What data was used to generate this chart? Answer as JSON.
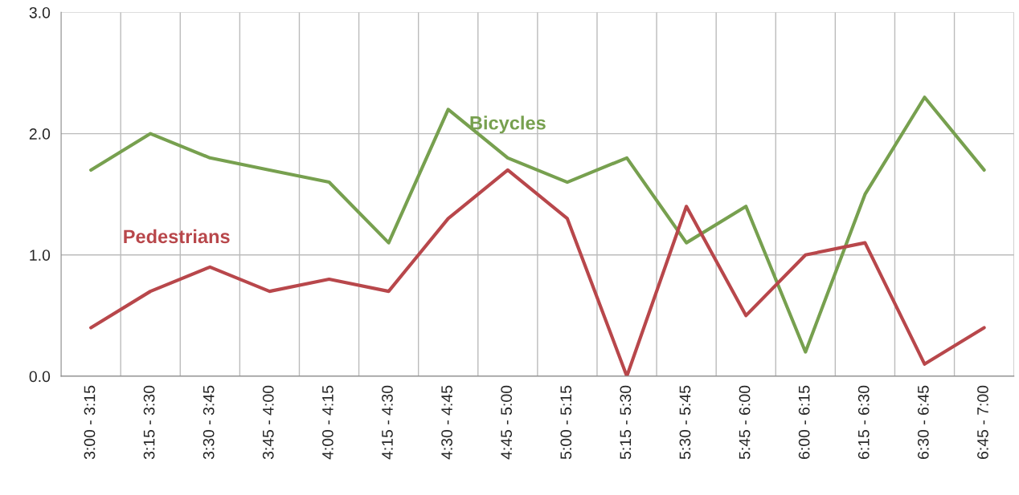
{
  "chart_data": {
    "type": "line",
    "categories": [
      "3:00 - 3:15",
      "3:15 - 3:30",
      "3:30 - 3:45",
      "3:45 - 4:00",
      "4:00 - 4:15",
      "4:15 - 4:30",
      "4:30 - 4:45",
      "4:45 - 5:00",
      "5:00 - 5:15",
      "5:15 - 5:30",
      "5:30 - 5:45",
      "5:45 - 6:00",
      "6:00 - 6:15",
      "6:15 - 6:30",
      "6:30 - 6:45",
      "6:45 - 7:00"
    ],
    "series": [
      {
        "name": "Bicycles",
        "color": "#77a04f",
        "values": [
          1.7,
          2.0,
          1.8,
          1.7,
          1.6,
          1.1,
          2.2,
          1.8,
          1.6,
          1.8,
          1.1,
          1.4,
          0.2,
          1.5,
          2.3,
          1.7
        ]
      },
      {
        "name": "Pedestrians",
        "color": "#b8474b",
        "values": [
          0.4,
          0.7,
          0.9,
          0.7,
          0.8,
          0.7,
          1.3,
          1.7,
          1.3,
          0.0,
          1.4,
          0.5,
          1.0,
          1.1,
          0.1,
          0.4
        ]
      }
    ],
    "ylim": [
      0,
      3
    ],
    "yticks": [
      {
        "value": 0,
        "label": "0.0"
      },
      {
        "value": 1,
        "label": "1.0"
      },
      {
        "value": 2,
        "label": "2.0"
      },
      {
        "value": 3,
        "label": "3.0"
      }
    ],
    "grid": true,
    "legend": false,
    "marker": "none",
    "line_style": "solid"
  }
}
